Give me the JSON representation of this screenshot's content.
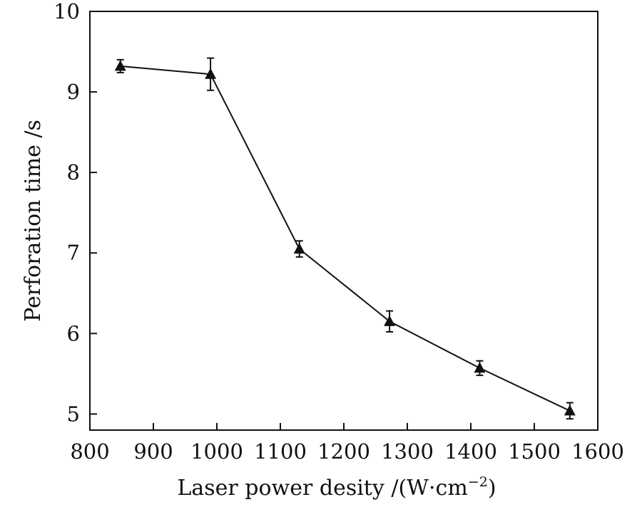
{
  "chart_data": {
    "type": "line",
    "title": "",
    "xlabel": "Laser power desity /(W·cm",
    "xlabel_exponent": "−2",
    "xlabel_close": ")",
    "ylabel": "Perforation time /s",
    "xlim": [
      800,
      1600
    ],
    "ylim": [
      4.8,
      10
    ],
    "xticks": [
      800,
      900,
      1000,
      1100,
      1200,
      1300,
      1400,
      1500,
      1600
    ],
    "yticks": [
      5,
      6,
      7,
      8,
      9,
      10
    ],
    "grid": false,
    "marker": "triangle",
    "color": "#111111",
    "series": [
      {
        "x": [
          848,
          990,
          1130,
          1272,
          1414,
          1556
        ],
        "y": [
          9.32,
          9.22,
          7.05,
          6.15,
          5.57,
          5.04
        ],
        "err": [
          0.08,
          0.2,
          0.1,
          0.13,
          0.09,
          0.1
        ]
      }
    ]
  }
}
